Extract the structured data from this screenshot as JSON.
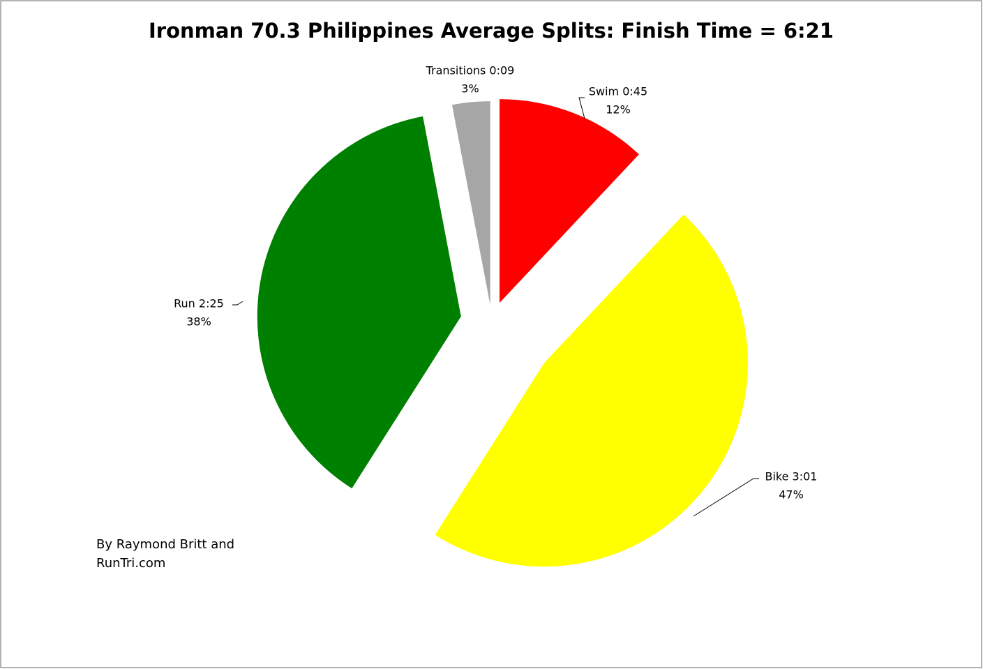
{
  "chart_data": {
    "type": "pie",
    "title": "Ironman 70.3 Philippines Average Splits: Finish Time = 6:21",
    "categories": [
      "Swim 0:45",
      "Bike 3:01",
      "Run 2:25",
      "Transitions 0:09"
    ],
    "values": [
      12,
      47,
      38,
      3
    ],
    "value_labels": [
      "12%",
      "47%",
      "38%",
      "3%"
    ],
    "colors": [
      "#ff0000",
      "#ffff00",
      "#008000",
      "#a6a6a6"
    ],
    "annotation": [
      "By Raymond Britt and",
      "RunTri.com"
    ]
  }
}
